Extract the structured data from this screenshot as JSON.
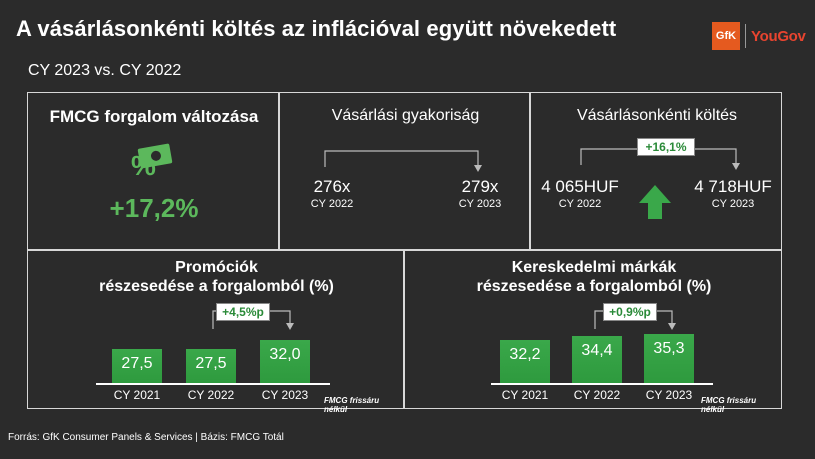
{
  "header": {
    "title": "A vásárlásonkénti költés az inflációval együtt növekedett",
    "subtitle": "CY 2023 vs. CY 2022",
    "logo_gfk": "GfK",
    "logo_yougov": "YouGov"
  },
  "fmcg": {
    "title": "FMCG forgalom változása",
    "value": "+17,2%",
    "icon": "money-percent-icon"
  },
  "frequency": {
    "title": "Vásárlási gyakoriság",
    "left_value": "276x",
    "left_year": "CY 2022",
    "right_value": "279x",
    "right_year": "CY 2023"
  },
  "spend": {
    "title": "Vásárlásonkénti költés",
    "delta": "+16,1%",
    "left_value": "4 065HUF",
    "left_year": "CY 2022",
    "right_value": "4 718HUF",
    "right_year": "CY 2023",
    "icon": "arrow-up-icon"
  },
  "chart_data": [
    {
      "type": "bar",
      "title": "Promóciók részesedése a forgalomból (%)",
      "title_line1": "Promóciók",
      "title_line2": "részesedése a forgalomból (%)",
      "categories": [
        "CY 2021",
        "CY 2022",
        "CY 2023"
      ],
      "values": [
        27.5,
        27.5,
        32.0
      ],
      "value_labels": [
        "27,5",
        "27,5",
        "32,0"
      ],
      "delta": "+4,5%p",
      "note": "FMCG frissáru nélkül",
      "color": "#2e9a3e"
    },
    {
      "type": "bar",
      "title": "Kereskedelmi márkák részesedése a forgalomból (%)",
      "title_line1": "Kereskedelmi márkák",
      "title_line2": "részesedése a forgalomból (%)",
      "categories": [
        "CY 2021",
        "CY 2022",
        "CY 2023"
      ],
      "values": [
        32.2,
        34.4,
        35.3
      ],
      "value_labels": [
        "32,2",
        "34,4",
        "35,3"
      ],
      "delta": "+0,9%p",
      "note": "FMCG frissáru nélkül",
      "color": "#2e9a3e"
    }
  ],
  "footer": {
    "source": "Forrás: GfK Consumer Panels & Services | Bázis: FMCG Totál"
  }
}
